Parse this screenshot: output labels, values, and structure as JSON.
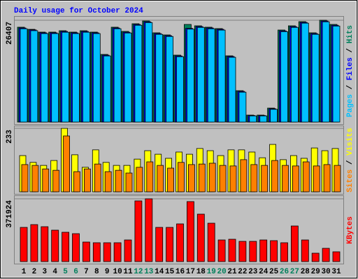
{
  "title": "Daily usage for October 2024",
  "chart_data": [
    {
      "type": "bar",
      "legend_separator": " / ",
      "ylim": [
        0,
        26407
      ],
      "yticks": [
        26407
      ],
      "series": [
        {
          "name": "Hits",
          "color": "#00805C",
          "values": [
            24600,
            24050,
            23330,
            23330,
            23690,
            23330,
            23690,
            23330,
            17540,
            24600,
            23510,
            25500,
            26220,
            23150,
            22600,
            17360,
            25320,
            24960,
            24600,
            24240,
            17180,
            8140,
            1810,
            1810,
            3620,
            23870,
            24960,
            26040,
            23150,
            26407,
            25320
          ]
        },
        {
          "name": "Files",
          "color": "#0000FF",
          "values": [
            24400,
            23900,
            23150,
            23150,
            23500,
            23150,
            23500,
            23150,
            17350,
            24400,
            23300,
            25300,
            26000,
            22950,
            22400,
            17150,
            24300,
            24750,
            24400,
            24050,
            17000,
            7950,
            1700,
            1700,
            3450,
            23650,
            24750,
            25850,
            22950,
            26200,
            25100
          ]
        },
        {
          "name": "Pages",
          "color": "#00C0FF",
          "values": [
            24200,
            23700,
            22950,
            22950,
            23300,
            22950,
            23300,
            22950,
            17150,
            24200,
            23100,
            25100,
            25800,
            22750,
            22200,
            16950,
            24100,
            24550,
            24200,
            23850,
            16800,
            7750,
            1600,
            1600,
            3300,
            23450,
            24550,
            25650,
            22750,
            26000,
            24900
          ]
        }
      ]
    },
    {
      "type": "bar",
      "legend_separator": " / ",
      "ylim": [
        0,
        233
      ],
      "yticks": [
        233
      ],
      "series": [
        {
          "name": "Visits",
          "color": "#FFFF00",
          "values": [
            133,
            108,
            97,
            115,
            233,
            136,
            90,
            154,
            108,
            97,
            97,
            120,
            151,
            138,
            123,
            146,
            138,
            159,
            151,
            133,
            154,
            154,
            146,
            125,
            174,
            118,
            133,
            123,
            161,
            151,
            159
          ]
        },
        {
          "name": "Sites",
          "color": "#FF8000",
          "values": [
            100,
            97,
            84,
            79,
            205,
            74,
            84,
            102,
            74,
            79,
            69,
            90,
            110,
            97,
            87,
            108,
            100,
            102,
            105,
            97,
            95,
            118,
            100,
            97,
            115,
            97,
            95,
            110,
            95,
            100,
            97
          ]
        }
      ]
    },
    {
      "type": "bar",
      "ylim": [
        0,
        371924
      ],
      "yticks": [
        371924
      ],
      "categories": [
        "1",
        "2",
        "3",
        "4",
        "5",
        "6",
        "7",
        "8",
        "9",
        "10",
        "11",
        "12",
        "13",
        "14",
        "15",
        "16",
        "17",
        "18",
        "19",
        "20",
        "21",
        "22",
        "23",
        "24",
        "25",
        "26",
        "27",
        "28",
        "29",
        "30",
        "31"
      ],
      "category_colors": [
        "#000000",
        "#000000",
        "#000000",
        "#000000",
        "#00805C",
        "#00805C",
        "#000000",
        "#000000",
        "#000000",
        "#000000",
        "#000000",
        "#00805C",
        "#00805C",
        "#000000",
        "#000000",
        "#000000",
        "#000000",
        "#000000",
        "#00805C",
        "#00805C",
        "#000000",
        "#000000",
        "#000000",
        "#000000",
        "#000000",
        "#00805C",
        "#00805C",
        "#000000",
        "#000000",
        "#000000",
        "#000000"
      ],
      "series": [
        {
          "name": "KBytes",
          "color": "#FF0000",
          "values": [
            202500,
            219000,
            206600,
            186000,
            173600,
            165300,
            115700,
            111600,
            111600,
            111600,
            128100,
            359500,
            371924,
            202500,
            202500,
            223200,
            355400,
            281000,
            227300,
            128100,
            132200,
            119800,
            119800,
            128100,
            124000,
            111600,
            210800,
            128100,
            49600,
            78500,
            57900
          ]
        }
      ]
    }
  ]
}
